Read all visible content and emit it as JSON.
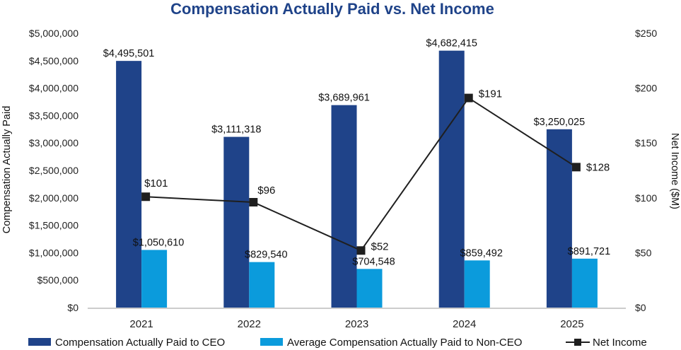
{
  "chart_data": {
    "type": "bar",
    "title": "Compensation Actually Paid vs. Net Income",
    "categories": [
      "2021",
      "2022",
      "2023",
      "2024",
      "2025"
    ],
    "ylabel": "Compensation Actually Paid",
    "y2label": "Net Income ($M)",
    "ylim": [
      0,
      5000000
    ],
    "y2lim": [
      0,
      250
    ],
    "yticks": [
      0,
      500000,
      1000000,
      1500000,
      2000000,
      2500000,
      3000000,
      3500000,
      4000000,
      4500000,
      5000000
    ],
    "ytick_labels": [
      "$0",
      "$500,000",
      "$1,000,000",
      "$1,500,000",
      "$2,000,000",
      "$2,500,000",
      "$3,000,000",
      "$3,500,000",
      "$4,000,000",
      "$4,500,000",
      "$5,000,000"
    ],
    "y2ticks": [
      0,
      50,
      100,
      150,
      200,
      250
    ],
    "y2tick_labels": [
      "$0",
      "$50",
      "$100",
      "$150",
      "$200",
      "$250"
    ],
    "series": [
      {
        "name": "Compensation Actually Paid to CEO",
        "type": "bar",
        "axis": "left",
        "color": "#1f4389",
        "values": [
          4495501,
          3111318,
          3689961,
          4682415,
          3250025
        ],
        "labels": [
          "$4,495,501",
          "$3,111,318",
          "$3,689,961",
          "$4,682,415",
          "$3,250,025"
        ]
      },
      {
        "name": "Average Compensation Actually Paid to Non-CEO",
        "type": "bar",
        "axis": "left",
        "color": "#0b9bdc",
        "values": [
          1050610,
          829540,
          704548,
          859492,
          891721
        ],
        "labels": [
          "$1,050,610",
          "$829,540",
          "$704,548",
          "$859,492",
          "$891,721"
        ]
      },
      {
        "name": "Net Income",
        "type": "line",
        "axis": "right",
        "color": "#1f1f1f",
        "values": [
          101,
          96,
          52,
          191,
          128
        ],
        "labels": [
          "$101",
          "$96",
          "$52",
          "$191",
          "$128"
        ]
      }
    ],
    "title_color": "#1f4389",
    "grid": false,
    "legend": "bottom"
  }
}
